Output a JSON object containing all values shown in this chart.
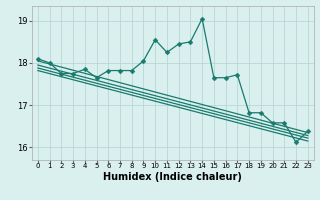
{
  "title": "",
  "xlabel": "Humidex (Indice chaleur)",
  "bg_color": "#d9f0ee",
  "grid_color": "#b8d8d5",
  "line_color": "#1a7a6e",
  "xlim": [
    -0.5,
    23.5
  ],
  "ylim": [
    15.7,
    19.35
  ],
  "yticks": [
    16,
    17,
    18,
    19
  ],
  "xticks": [
    0,
    1,
    2,
    3,
    4,
    5,
    6,
    7,
    8,
    9,
    10,
    11,
    12,
    13,
    14,
    15,
    16,
    17,
    18,
    19,
    20,
    21,
    22,
    23
  ],
  "main_series": [
    18.1,
    18.0,
    17.75,
    17.75,
    17.85,
    17.65,
    17.82,
    17.82,
    17.82,
    18.05,
    18.55,
    18.25,
    18.45,
    18.5,
    19.05,
    17.65,
    17.65,
    17.72,
    16.82,
    16.82,
    16.58,
    16.58,
    16.12,
    16.38
  ],
  "trend_lines": [
    {
      "start": 18.05,
      "end": 16.35
    },
    {
      "start": 17.95,
      "end": 16.28
    },
    {
      "start": 17.88,
      "end": 16.22
    },
    {
      "start": 17.82,
      "end": 16.15
    }
  ],
  "markersize": 2.5,
  "linewidth": 0.9,
  "trend_linewidth": 0.9
}
